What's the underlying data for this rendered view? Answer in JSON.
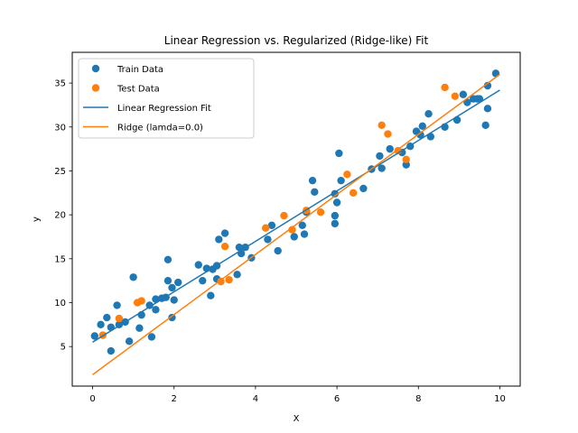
{
  "chart_data": {
    "type": "scatter",
    "title": "Linear Regression vs. Regularized (Ridge-like) Fit",
    "xlabel": "X",
    "ylabel": "y",
    "xlim": [
      -0.5,
      10.5
    ],
    "ylim": [
      0.5,
      38.5
    ],
    "xticks": [
      0,
      2,
      4,
      6,
      8,
      10
    ],
    "yticks": [
      5,
      10,
      15,
      20,
      25,
      30,
      35
    ],
    "grid": false,
    "legend_position": "top-left",
    "series": [
      {
        "name": "Train Data",
        "kind": "scatter",
        "color": "#1f77b4",
        "points": [
          [
            0.05,
            6.2
          ],
          [
            0.2,
            7.5
          ],
          [
            0.35,
            8.3
          ],
          [
            0.45,
            4.5
          ],
          [
            0.45,
            7.2
          ],
          [
            0.6,
            9.7
          ],
          [
            0.65,
            7.5
          ],
          [
            0.8,
            7.8
          ],
          [
            0.9,
            5.6
          ],
          [
            1.0,
            12.9
          ],
          [
            1.15,
            7.1
          ],
          [
            1.2,
            8.6
          ],
          [
            1.4,
            9.7
          ],
          [
            1.45,
            6.1
          ],
          [
            1.55,
            9.2
          ],
          [
            1.55,
            10.4
          ],
          [
            1.7,
            10.5
          ],
          [
            1.8,
            10.6
          ],
          [
            1.85,
            12.5
          ],
          [
            1.85,
            14.9
          ],
          [
            1.95,
            11.7
          ],
          [
            1.95,
            8.3
          ],
          [
            2.0,
            10.3
          ],
          [
            2.1,
            12.3
          ],
          [
            2.6,
            14.3
          ],
          [
            2.7,
            12.5
          ],
          [
            2.8,
            13.9
          ],
          [
            2.9,
            10.8
          ],
          [
            2.95,
            13.8
          ],
          [
            3.05,
            14.2
          ],
          [
            3.05,
            12.7
          ],
          [
            3.1,
            17.2
          ],
          [
            3.25,
            17.9
          ],
          [
            3.55,
            13.2
          ],
          [
            3.6,
            16.3
          ],
          [
            3.65,
            15.6
          ],
          [
            3.75,
            16.3
          ],
          [
            3.9,
            15.1
          ],
          [
            4.3,
            17.2
          ],
          [
            4.4,
            18.8
          ],
          [
            4.55,
            15.9
          ],
          [
            4.95,
            17.5
          ],
          [
            5.15,
            18.8
          ],
          [
            5.2,
            17.8
          ],
          [
            5.25,
            20.3
          ],
          [
            5.4,
            23.9
          ],
          [
            5.45,
            22.6
          ],
          [
            5.95,
            22.4
          ],
          [
            5.95,
            19.9
          ],
          [
            5.95,
            19.0
          ],
          [
            6.0,
            21.4
          ],
          [
            6.05,
            27.0
          ],
          [
            6.1,
            23.9
          ],
          [
            6.65,
            23.0
          ],
          [
            6.85,
            25.2
          ],
          [
            7.05,
            26.7
          ],
          [
            7.1,
            25.3
          ],
          [
            7.3,
            27.5
          ],
          [
            7.6,
            27.1
          ],
          [
            7.7,
            25.7
          ],
          [
            7.8,
            27.8
          ],
          [
            7.95,
            29.5
          ],
          [
            8.05,
            29.1
          ],
          [
            8.1,
            30.1
          ],
          [
            8.25,
            31.5
          ],
          [
            8.3,
            28.9
          ],
          [
            8.65,
            30.0
          ],
          [
            8.95,
            30.8
          ],
          [
            9.1,
            33.7
          ],
          [
            9.2,
            32.8
          ],
          [
            9.35,
            33.2
          ],
          [
            9.45,
            33.2
          ],
          [
            9.5,
            33.2
          ],
          [
            9.65,
            30.2
          ],
          [
            9.7,
            32.1
          ],
          [
            9.7,
            34.7
          ],
          [
            9.9,
            36.1
          ]
        ]
      },
      {
        "name": "Test Data",
        "kind": "scatter",
        "color": "#ff7f0e",
        "points": [
          [
            0.25,
            6.3
          ],
          [
            0.65,
            8.2
          ],
          [
            1.1,
            10.0
          ],
          [
            1.2,
            10.2
          ],
          [
            3.15,
            12.4
          ],
          [
            3.25,
            16.4
          ],
          [
            3.35,
            12.6
          ],
          [
            4.25,
            18.5
          ],
          [
            4.7,
            19.9
          ],
          [
            4.9,
            18.3
          ],
          [
            5.25,
            20.5
          ],
          [
            5.6,
            20.3
          ],
          [
            6.25,
            24.6
          ],
          [
            6.4,
            22.5
          ],
          [
            7.1,
            30.2
          ],
          [
            7.25,
            29.2
          ],
          [
            7.5,
            27.3
          ],
          [
            7.7,
            26.3
          ],
          [
            8.65,
            34.5
          ],
          [
            8.9,
            33.5
          ]
        ]
      },
      {
        "name": "Linear Regression Fit",
        "kind": "line",
        "color": "#1f77b4",
        "x": [
          0,
          10
        ],
        "y": [
          5.5,
          34.2
        ]
      },
      {
        "name": "Ridge (lamda=0.0)",
        "kind": "line",
        "color": "#ff7f0e",
        "x": [
          0,
          10
        ],
        "y": [
          1.8,
          36.0
        ]
      }
    ]
  }
}
